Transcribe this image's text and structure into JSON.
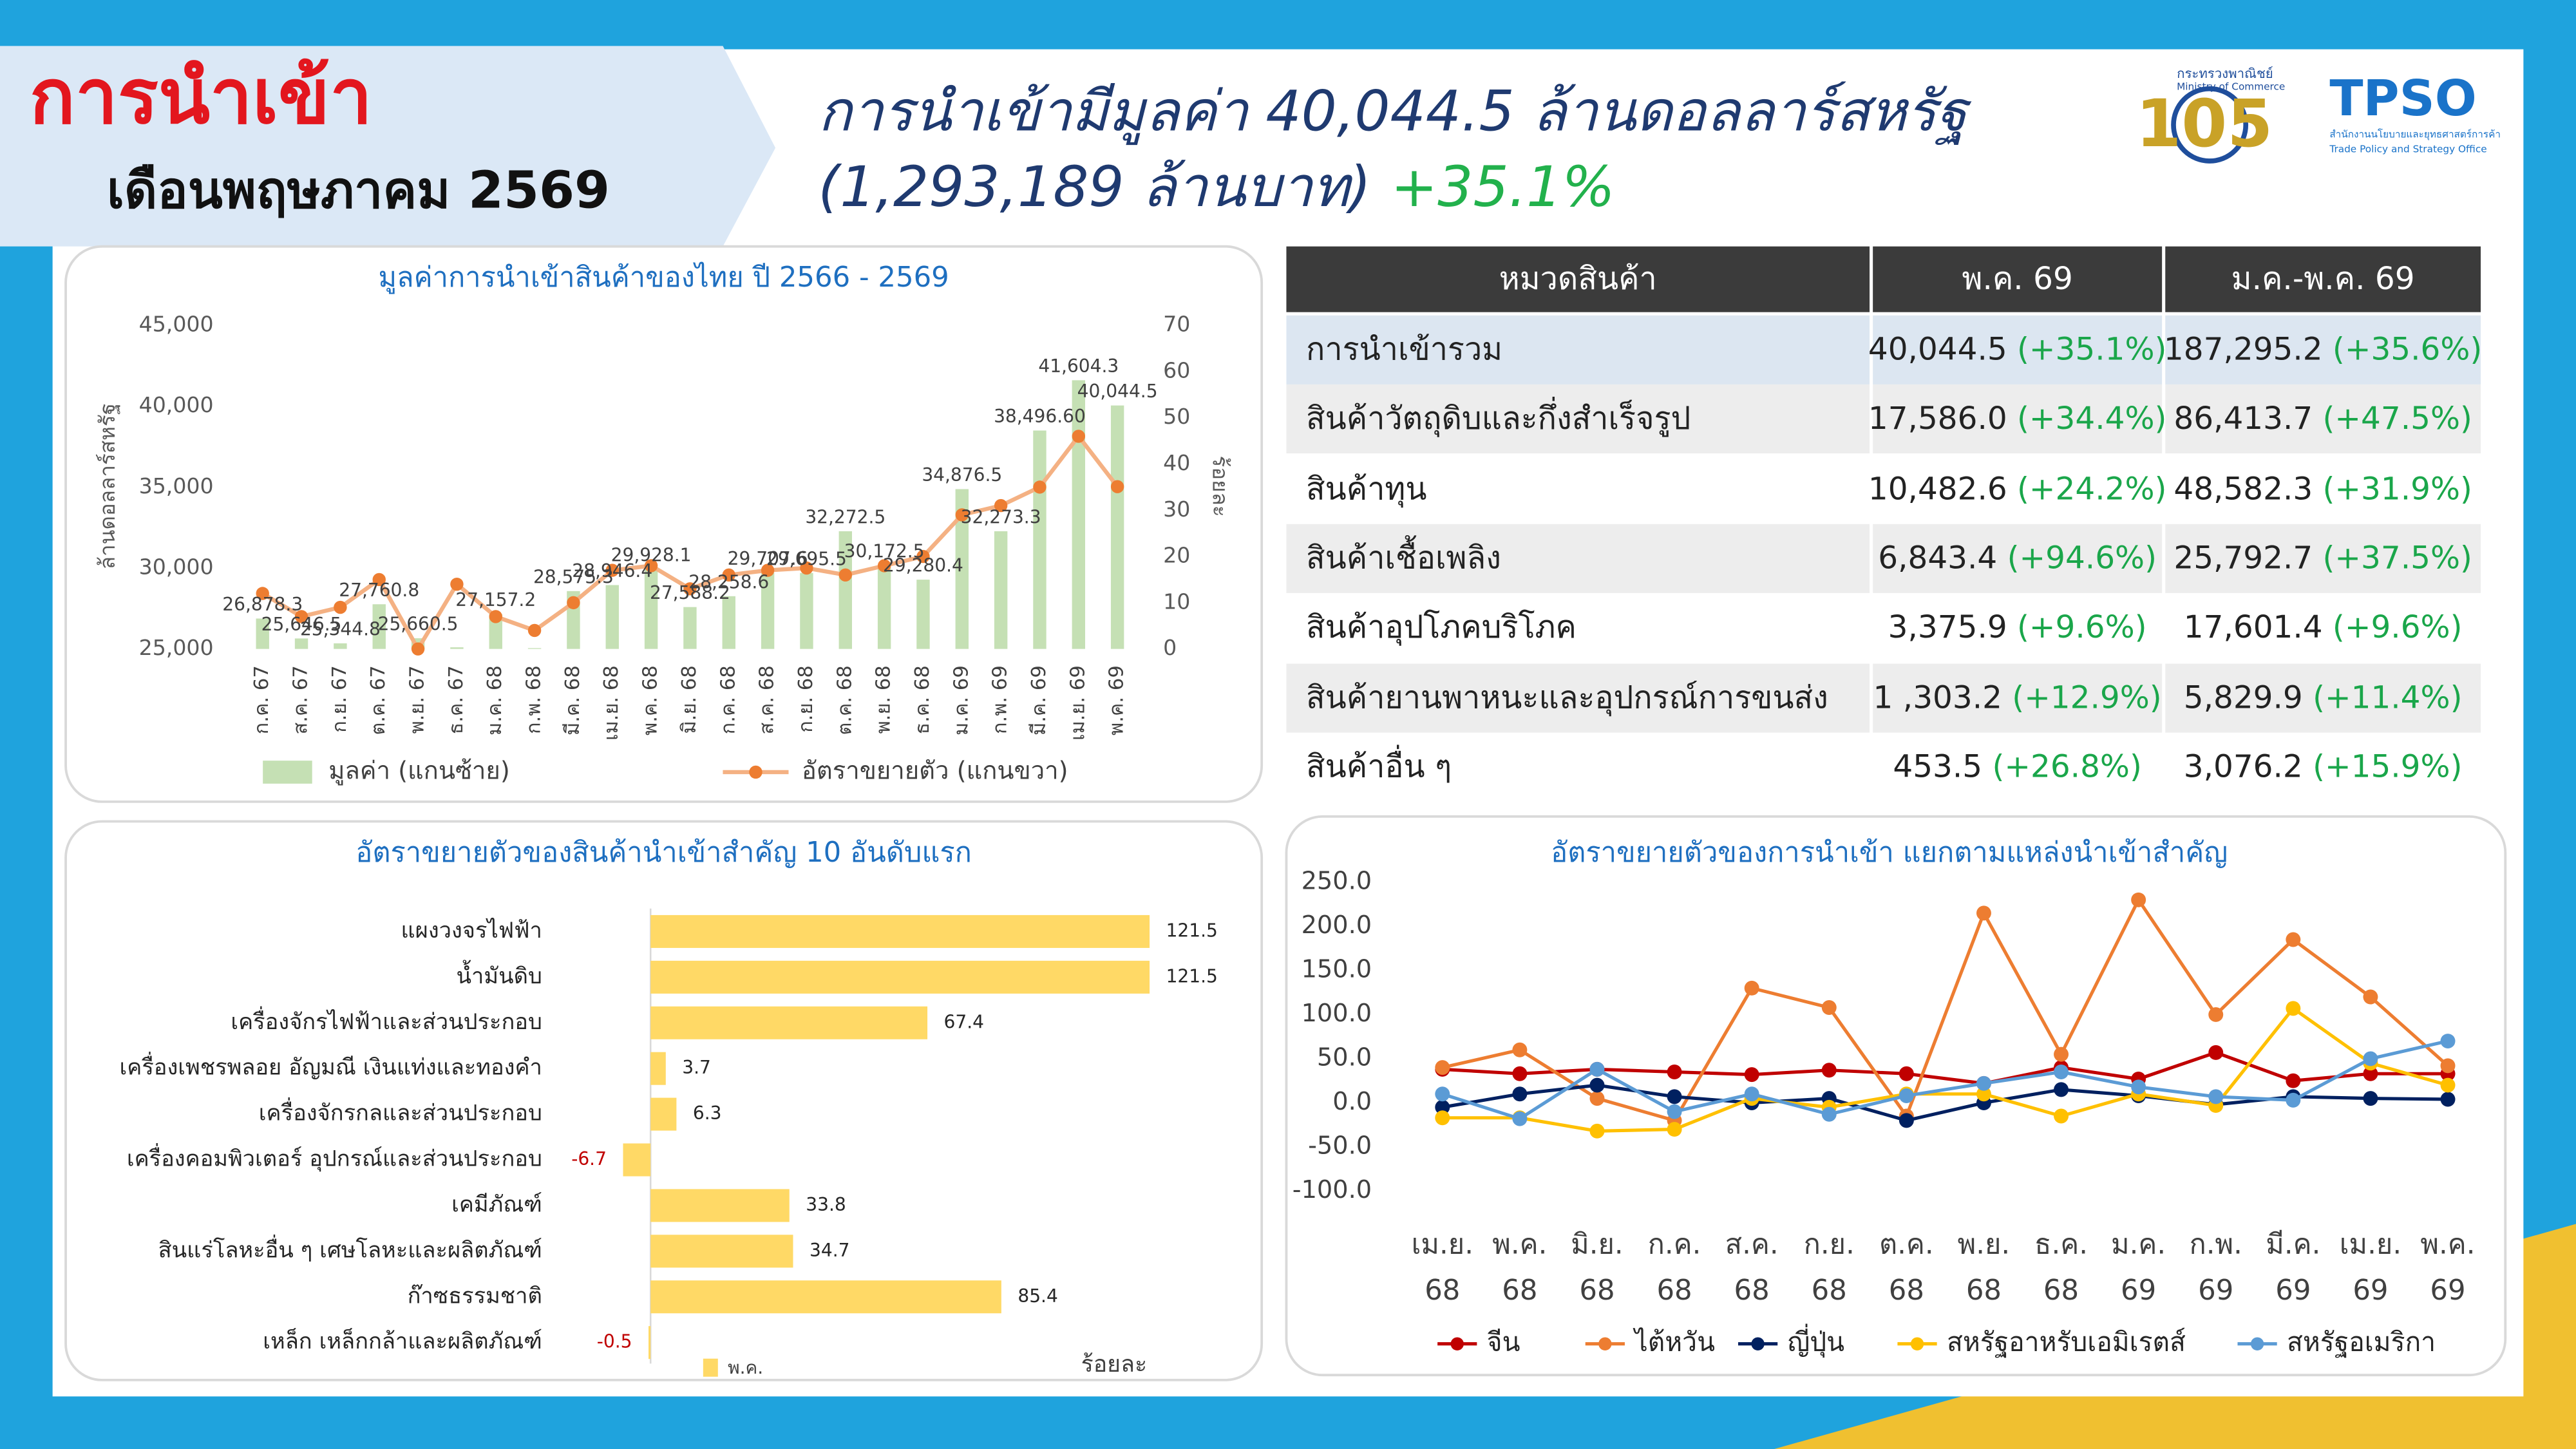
{
  "header": {
    "title": "การนำเข้า",
    "subtitle": "เดือนพฤษภาคม 2569",
    "headline_1": "การนำเข้ามีมูลค่า 40,044.5 ล้านดอลลาร์สหรัฐ",
    "headline_2": "(1,293,189 ล้านบาท)",
    "headline_change": "+35.1%"
  },
  "logos": {
    "moc_th": "กระทรวงพาณิชย์",
    "moc_en": "Ministry of Commerce",
    "anniversary": "105",
    "tpso": "TPSO",
    "tpso_th": "สำนักงานนโยบายและยุทธศาสตร์การค้า",
    "tpso_en": "Trade Policy and Strategy Office"
  },
  "table": {
    "columns": [
      "หมวดสินค้า",
      "พ.ค. 69",
      "ม.ค.-พ.ค. 69"
    ],
    "rows": [
      [
        "การนำเข้ารวม",
        "40,044.5",
        "(+35.1%)",
        "187,295.2",
        "(+35.6%)"
      ],
      [
        "สินค้าวัตถุดิบและกึ่งสำเร็จรูป",
        "17,586.0",
        "(+34.4%)",
        "86,413.7",
        "(+47.5%)"
      ],
      [
        "สินค้าทุน",
        "10,482.6",
        "(+24.2%)",
        "48,582.3",
        "(+31.9%)"
      ],
      [
        "สินค้าเชื้อเพลิง",
        "6,843.4",
        "(+94.6%)",
        "25,792.7",
        "(+37.5%)"
      ],
      [
        "สินค้าอุปโภคบริโภค",
        "3,375.9",
        "(+9.6%)",
        "17,601.4",
        "(+9.6%)"
      ],
      [
        "สินค้ายานพาหนะและอุปกรณ์การขนส่ง",
        "1 ,303.2",
        "(+12.9%)",
        "5,829.9",
        "(+11.4%)"
      ],
      [
        "สินค้าอื่น ๆ",
        "453.5",
        "(+26.8%)",
        "3,076.2",
        "(+15.9%)"
      ]
    ]
  },
  "chart_data": [
    {
      "type": "bar_line",
      "title": "มูลค่าการนำเข้าสินค้าของไทย ปี 2566 - 2569",
      "y_label": "ล้านดอลลาร์สหรัฐ",
      "y2_label": "ร้อยละ",
      "categories": [
        "ก.ค. 67",
        "ส.ค. 67",
        "ก.ย. 67",
        "ต.ค. 67",
        "พ.ย. 67",
        "ธ.ค. 67",
        "ม.ค. 68",
        "ก.พ. 68",
        "มี.ค. 68",
        "เม.ย. 68",
        "พ.ค. 68",
        "มิ.ย. 68",
        "ก.ค. 68",
        "ส.ค. 68",
        "ก.ย. 68",
        "ต.ค. 68",
        "พ.ย. 68",
        "ธ.ค. 68",
        "ม.ค. 69",
        "ก.พ. 69",
        "มี.ค. 69",
        "เม.ย. 69",
        "พ.ค. 69"
      ],
      "series": [
        {
          "name": "มูลค่า (แกนซ้าย)",
          "type": "bar",
          "color": "#c5e0b4",
          "values": [
            26878.3,
            25646.5,
            25344.8,
            27760.8,
            25660.5,
            25100,
            27157.2,
            25050,
            28575.3,
            28946.4,
            29928.1,
            27588.2,
            28258.6,
            29707.6,
            29695.5,
            32272.5,
            30172.5,
            29280.4,
            34876.5,
            32273.3,
            38496.6,
            41604.3,
            40044.5
          ],
          "value_labels": [
            "26,878.3",
            "25,646.5",
            "25,344.8",
            "27,760.8",
            "25,660.5",
            null,
            "27,157.2",
            null,
            "28,575.3",
            "28,946.4",
            "29,928.1",
            "27,588.2",
            "28,258.6",
            "29,707.6",
            "29,695.5",
            "32,272.5",
            "30,172.5",
            "29,280.4",
            "34,876.5",
            "32,273.3",
            "38,496.60",
            "41,604.3",
            "40,044.5"
          ]
        },
        {
          "name": "อัตราขยายตัว (แกนขวา)",
          "type": "line",
          "axis": "y2",
          "color": "#ed7d31",
          "values": [
            12,
            7,
            9,
            15,
            0,
            14,
            7,
            4,
            10,
            17,
            18,
            13,
            16,
            17,
            17.5,
            16,
            18,
            20,
            29,
            31,
            35,
            46,
            35.1
          ]
        }
      ],
      "ylim": [
        25000,
        45000
      ],
      "yticks": [
        {
          "value": 25000,
          "label": "25,000"
        },
        {
          "value": 30000,
          "label": "30,000"
        },
        {
          "value": 35000,
          "label": "35,000"
        },
        {
          "value": 40000,
          "label": "40,000"
        },
        {
          "value": 45000,
          "label": "45,000"
        }
      ],
      "y2lim": [
        0,
        70
      ],
      "y2ticks": [
        0,
        10,
        20,
        30,
        40,
        50,
        60,
        70
      ],
      "grid": false
    },
    {
      "type": "bar",
      "orientation": "horizontal",
      "title": "อัตราขยายตัวของสินค้านำเข้าสำคัญ 10 อันดับแรก",
      "x_label": "ร้อยละ",
      "categories": [
        "แผงวงจรไฟฟ้า",
        "น้ำมันดิบ",
        "เครื่องจักรไฟฟ้าและส่วนประกอบ",
        "เครื่องเพชรพลอย อัญมณี เงินแท่งและทองคำ",
        "เครื่องจักรกลและส่วนประกอบ",
        "เครื่องคอมพิวเตอร์ อุปกรณ์และส่วนประกอบ",
        "เคมีภัณฑ์",
        "สินแร่โลหะอื่น ๆ เศษโลหะและผลิตภัณฑ์",
        "ก๊าซธรรมชาติ",
        "เหล็ก เหล็กกล้าและผลิตภัณฑ์"
      ],
      "series": [
        {
          "name": "พ.ค.",
          "color": "#ffd966",
          "values": [
            121.5,
            121.5,
            67.4,
            3.7,
            6.3,
            -6.7,
            33.8,
            34.7,
            85.4,
            -0.5
          ]
        }
      ],
      "negative_label_color": "#c00000"
    },
    {
      "type": "line",
      "title": "อัตราขยายตัวของการนำเข้า แยกตามแหล่งนำเข้าสำคัญ",
      "categories": [
        "เม.ย. 68",
        "พ.ค. 68",
        "มิ.ย. 68",
        "ก.ค. 68",
        "ส.ค. 68",
        "ก.ย. 68",
        "ต.ค. 68",
        "พ.ย. 68",
        "ธ.ค. 68",
        "ม.ค. 69",
        "ก.พ. 69",
        "มี.ค. 69",
        "เม.ย. 69",
        "พ.ค. 69"
      ],
      "series": [
        {
          "name": "จีน",
          "color": "#c00000",
          "values": [
            38,
            33,
            38,
            35,
            32,
            37,
            33,
            22,
            40,
            27,
            57,
            25,
            33,
            33
          ]
        },
        {
          "name": "ไต้หวัน",
          "color": "#ed7d31",
          "values": [
            40,
            60,
            5,
            -20,
            130,
            108,
            -15,
            215,
            55,
            230,
            100,
            185,
            120,
            42
          ]
        },
        {
          "name": "ญี่ปุ่น",
          "color": "#002060",
          "values": [
            -5,
            10,
            20,
            7,
            0,
            5,
            -20,
            0,
            15,
            8,
            -2,
            7,
            5,
            4
          ]
        },
        {
          "name": "สหรัฐอาหรับเอมิเรตส์",
          "color": "#ffc000",
          "values": [
            -17,
            -17,
            -32,
            -30,
            5,
            -5,
            10,
            10,
            -15,
            10,
            -3,
            107,
            45,
            20
          ]
        },
        {
          "name": "สหรัฐอเมริกา",
          "color": "#5b9bd5",
          "values": [
            10,
            -18,
            38,
            -10,
            10,
            -13,
            8,
            22,
            35,
            18,
            7,
            3,
            50,
            70
          ]
        }
      ],
      "ylim": [
        -100,
        250
      ],
      "yticks": [
        {
          "value": -100,
          "label": "-100.0"
        },
        {
          "value": -50,
          "label": "-50.0"
        },
        {
          "value": 0,
          "label": "0.0"
        },
        {
          "value": 50,
          "label": "50.0"
        },
        {
          "value": 100,
          "label": "100.0"
        },
        {
          "value": 150,
          "label": "150.0"
        },
        {
          "value": 200,
          "label": "200.0"
        },
        {
          "value": 250,
          "label": "250.0"
        }
      ],
      "grid": false
    }
  ]
}
